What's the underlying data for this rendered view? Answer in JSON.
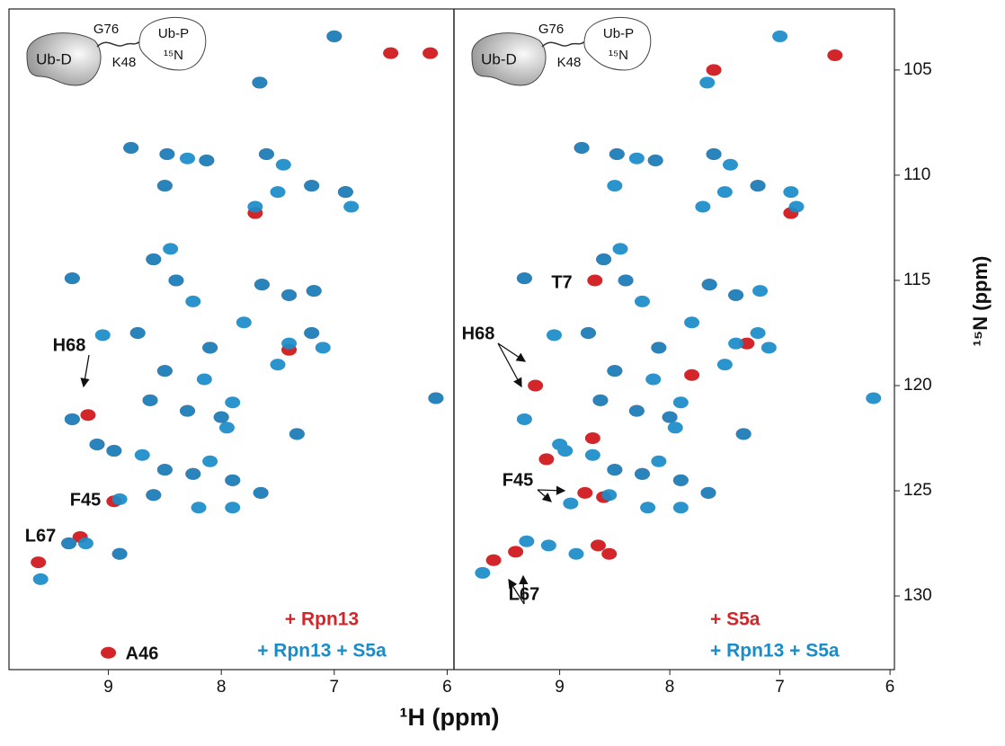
{
  "chart_data": [
    {
      "type": "scatter",
      "x_label": "¹H (ppm)",
      "xlim": [
        9.88,
        5.94
      ],
      "ylim": [
        102.1,
        133.5
      ],
      "xticks": [
        9,
        8,
        7,
        6
      ],
      "inset_labels": [
        "Ub-D",
        "G76",
        "K48",
        "Ub-P",
        "¹⁵N"
      ],
      "annotations": [
        "H68",
        "F45",
        "L67",
        "A46"
      ],
      "series": [
        {
          "name": "+ Rpn13",
          "color": "#d3262a",
          "x": [
            7.0,
            7.66,
            6.5,
            6.15,
            8.8,
            8.48,
            8.13,
            7.6,
            7.2,
            6.9,
            7.7,
            8.5,
            8.6,
            9.32,
            8.4,
            7.64,
            7.4,
            7.18,
            8.74,
            8.1,
            7.2,
            7.4,
            8.5,
            8.63,
            8.3,
            8.0,
            9.32,
            9.18,
            9.1,
            7.33,
            8.95,
            8.5,
            8.25,
            7.9,
            8.95,
            8.6,
            7.65,
            9.35,
            9.25,
            8.9,
            9.62,
            9.0,
            6.1
          ],
          "values": [
            103.4,
            105.6,
            104.2,
            104.2,
            108.7,
            109.0,
            109.3,
            109.0,
            110.5,
            110.8,
            111.8,
            110.5,
            114.0,
            114.9,
            115.0,
            115.2,
            115.7,
            115.5,
            117.5,
            118.2,
            117.5,
            118.3,
            119.3,
            120.7,
            121.2,
            121.5,
            121.6,
            121.4,
            122.8,
            122.3,
            123.1,
            124.0,
            124.2,
            124.5,
            125.5,
            125.2,
            125.1,
            127.5,
            127.2,
            128.0,
            128.4,
            132.7,
            120.6
          ]
        },
        {
          "name": "+ Rpn13 + S5a",
          "color": "#1a8cc8",
          "x": [
            7.0,
            7.66,
            8.8,
            8.48,
            8.3,
            8.13,
            7.6,
            7.45,
            7.2,
            6.9,
            6.85,
            7.5,
            7.7,
            8.5,
            8.6,
            8.45,
            9.32,
            8.4,
            8.25,
            7.64,
            7.4,
            7.18,
            7.8,
            8.74,
            9.05,
            8.1,
            7.2,
            7.4,
            7.1,
            7.5,
            8.5,
            8.63,
            8.3,
            8.0,
            7.9,
            9.32,
            9.1,
            7.33,
            8.95,
            8.7,
            8.5,
            8.25,
            8.1,
            7.9,
            8.6,
            8.9,
            7.65,
            8.2,
            7.9,
            9.35,
            9.2,
            8.9,
            9.6,
            6.1,
            8.15,
            7.95
          ],
          "values": [
            103.4,
            105.6,
            108.7,
            109.0,
            109.2,
            109.3,
            109.0,
            109.5,
            110.5,
            110.8,
            111.5,
            110.8,
            111.5,
            110.5,
            114.0,
            113.5,
            114.9,
            115.0,
            116.0,
            115.2,
            115.7,
            115.5,
            117.0,
            117.5,
            117.6,
            118.2,
            117.5,
            118.0,
            118.2,
            119.0,
            119.3,
            120.7,
            121.2,
            121.5,
            120.8,
            121.6,
            122.8,
            122.3,
            123.1,
            123.3,
            124.0,
            124.2,
            123.6,
            124.5,
            125.2,
            125.4,
            125.1,
            125.8,
            125.8,
            127.5,
            127.5,
            128.0,
            129.2,
            120.6,
            119.7,
            122.0
          ]
        }
      ]
    },
    {
      "type": "scatter",
      "y_label": "¹⁵N (ppm)",
      "xlim": [
        9.96,
        5.96
      ],
      "ylim": [
        102.1,
        133.5
      ],
      "xticks": [
        9,
        8,
        7,
        6
      ],
      "yticks": [
        105,
        110,
        115,
        120,
        125,
        130
      ],
      "inset_labels": [
        "Ub-D",
        "G76",
        "K48",
        "Ub-P",
        "¹⁵N"
      ],
      "annotations": [
        "T7",
        "H68",
        "F45",
        "L67"
      ],
      "series": [
        {
          "name": "+ S5a",
          "color": "#d3262a",
          "x": [
            7.6,
            6.5,
            8.8,
            8.48,
            8.13,
            7.6,
            7.2,
            6.9,
            8.6,
            9.32,
            8.68,
            8.4,
            7.64,
            7.4,
            8.74,
            8.1,
            7.3,
            8.5,
            8.63,
            8.3,
            8.0,
            7.8,
            9.22,
            9.12,
            8.7,
            7.33,
            8.5,
            8.25,
            7.9,
            8.77,
            8.6,
            7.65,
            9.4,
            8.65,
            8.55,
            9.6
          ],
          "values": [
            105.0,
            104.3,
            108.7,
            109.0,
            109.3,
            109.0,
            110.5,
            111.8,
            114.0,
            114.9,
            115.0,
            115.0,
            115.2,
            115.7,
            117.5,
            118.2,
            118.0,
            119.3,
            120.7,
            121.2,
            121.5,
            119.5,
            120.0,
            123.5,
            122.5,
            122.3,
            124.0,
            124.2,
            124.5,
            125.1,
            125.3,
            125.1,
            127.9,
            127.6,
            128.0,
            128.3
          ]
        },
        {
          "name": "+ Rpn13 + S5a",
          "color": "#1a8cc8",
          "x": [
            7.0,
            7.66,
            8.8,
            8.48,
            8.3,
            8.13,
            7.6,
            7.45,
            7.2,
            6.9,
            6.85,
            7.5,
            7.7,
            8.5,
            8.6,
            8.45,
            9.32,
            8.4,
            8.25,
            7.64,
            7.4,
            7.18,
            7.8,
            8.74,
            9.05,
            8.1,
            7.2,
            7.4,
            7.1,
            7.5,
            8.5,
            8.63,
            8.3,
            8.0,
            7.9,
            9.32,
            9.0,
            7.33,
            8.95,
            8.7,
            8.5,
            8.25,
            8.1,
            7.9,
            8.55,
            8.9,
            7.65,
            8.2,
            7.9,
            9.3,
            9.1,
            8.85,
            9.7,
            6.15,
            8.15,
            7.95
          ],
          "values": [
            103.4,
            105.6,
            108.7,
            109.0,
            109.2,
            109.3,
            109.0,
            109.5,
            110.5,
            110.8,
            111.5,
            110.8,
            111.5,
            110.5,
            114.0,
            113.5,
            114.9,
            115.0,
            116.0,
            115.2,
            115.7,
            115.5,
            117.0,
            117.5,
            117.6,
            118.2,
            117.5,
            118.0,
            118.2,
            119.0,
            119.3,
            120.7,
            121.2,
            121.5,
            120.8,
            121.6,
            122.8,
            122.3,
            123.1,
            123.3,
            124.0,
            124.2,
            123.6,
            124.5,
            125.2,
            125.6,
            125.1,
            125.8,
            125.8,
            127.4,
            127.6,
            128.0,
            128.9,
            120.6,
            119.7,
            122.0
          ]
        }
      ]
    }
  ]
}
